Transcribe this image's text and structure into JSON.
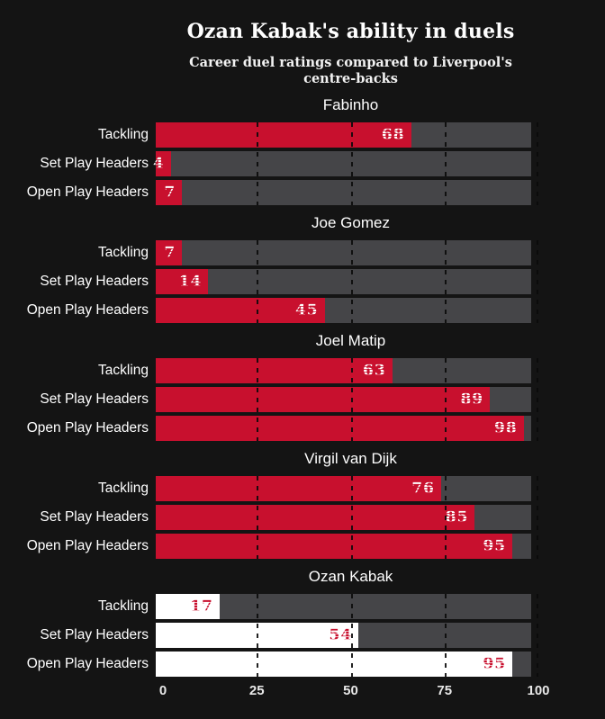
{
  "header": {
    "title": "Ozan Kabak's ability in duels",
    "subtitle": "Career duel ratings compared to Liverpool's centre-backs"
  },
  "colors": {
    "background": "#141414",
    "bar_red": "#C8102E",
    "bar_highlight_white": "#FFFFFF",
    "track_gray": "#454548",
    "gridline_dark": "#0A0A0A",
    "text_white": "#FFFFFF",
    "axis_tick": "#E8E8E8"
  },
  "chart_data": {
    "type": "bar",
    "orientation": "horizontal",
    "title": "Ozan Kabak's ability in duels",
    "subtitle": "Career duel ratings compared to Liverpool's centre-backs",
    "categories": [
      "Tackling",
      "Set Play Headers",
      "Open Play Headers"
    ],
    "xlim": [
      0,
      100
    ],
    "ticks": [
      "0",
      "25",
      "50",
      "75",
      "100"
    ],
    "gridlines_at": [
      25,
      50,
      75,
      100
    ],
    "grid_style": "dashed-vertical-over-bars",
    "legend": "none",
    "series": [
      {
        "name": "Fabinho",
        "variant": "default",
        "values": [
          68,
          4,
          7
        ]
      },
      {
        "name": "Joe Gomez",
        "variant": "default",
        "values": [
          7,
          14,
          45
        ]
      },
      {
        "name": "Joel Matip",
        "variant": "default",
        "values": [
          63,
          89,
          98
        ]
      },
      {
        "name": "Virgil van Dijk",
        "variant": "default",
        "values": [
          76,
          85,
          95
        ]
      },
      {
        "name": "Ozan Kabak",
        "variant": "highlight",
        "values": [
          17,
          54,
          95
        ]
      }
    ]
  }
}
